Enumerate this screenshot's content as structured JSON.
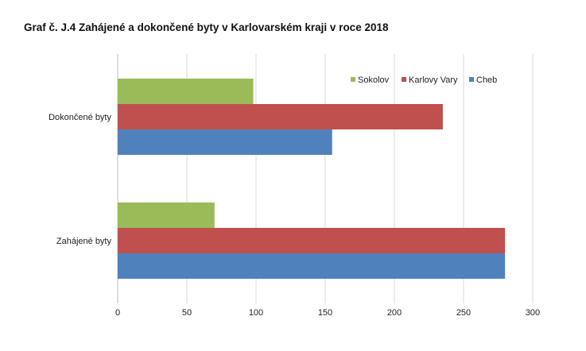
{
  "chart_data": {
    "type": "bar",
    "orientation": "horizontal",
    "title": "Graf č. J.4 Zahájené a dokončené byty v Karlovarském kraji v roce 2018",
    "categories": [
      "Dokončené  byty",
      "Zahájené byty"
    ],
    "series": [
      {
        "name": "Sokolov",
        "color": "#9bbb59",
        "values": [
          98,
          70
        ]
      },
      {
        "name": "Karlovy Vary",
        "color": "#c0504d",
        "values": [
          235,
          280
        ]
      },
      {
        "name": "Cheb",
        "color": "#4f81bd",
        "values": [
          155,
          280
        ]
      }
    ],
    "xlim": [
      0,
      300
    ],
    "xticks": [
      "0",
      "50",
      "100",
      "150",
      "200",
      "250",
      "300"
    ],
    "xlabel": "",
    "ylabel": "",
    "grid": "vertical",
    "legend_position": "top-right"
  }
}
